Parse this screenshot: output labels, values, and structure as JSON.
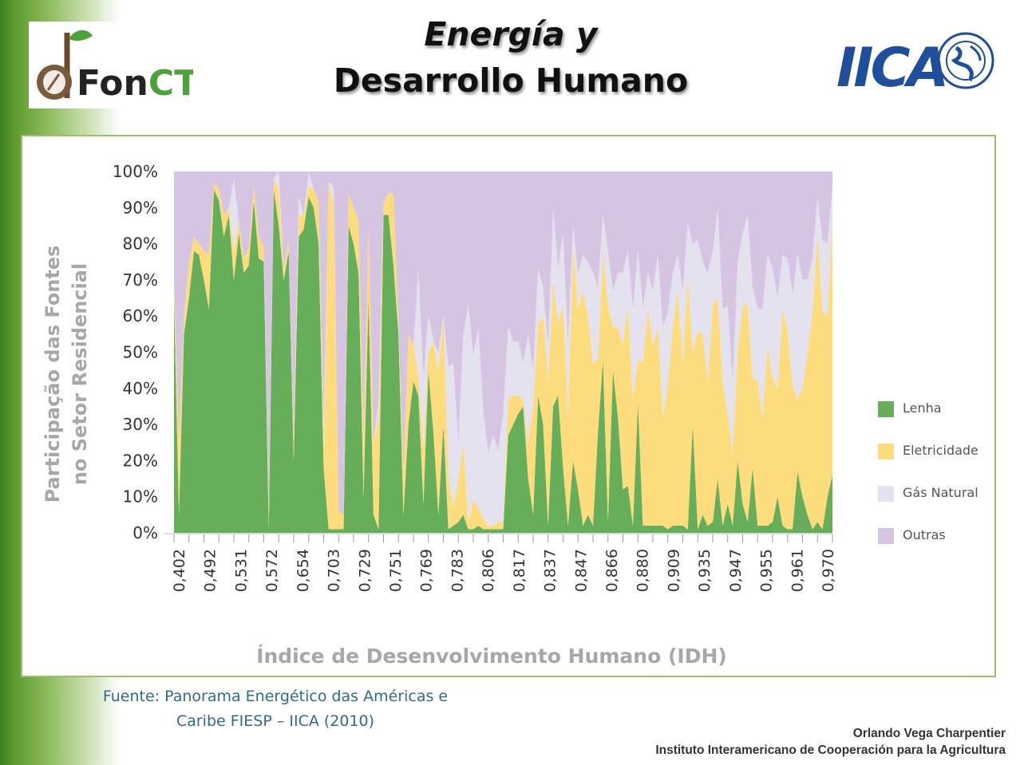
{
  "slide": {
    "title_line1": "Energía y",
    "title_line2": "Desarrollo Humano",
    "logo_left_text_a": "Fon",
    "logo_left_text_b": "CT",
    "logo_right_text": "IICA",
    "source_line1": "Fuente: Panorama Energético das Américas e",
    "source_line2": "Caribe FIESP – IICA (2010)",
    "author_name": "Orlando Vega Charpentier",
    "author_org": "Instituto Interamericano de Cooperación para la Agricultura"
  },
  "colors": {
    "lenha": "#66ae5a",
    "eletricidade": "#fddc7e",
    "gas_natural": "#e4e2ef",
    "outras": "#d6c5e2",
    "band_green": "#4a8a25",
    "title_shadow": "#9a9a9a",
    "frame": "#9bbf6a",
    "source_text": "#2f6b8e"
  },
  "chart_data": {
    "type": "area",
    "stacked": true,
    "ylabel_line1": "Participação das Fontes",
    "ylabel_line2": "no Setor Residencial",
    "xlabel": "Índice de Desenvolvimento Humano (IDH)",
    "ylim": [
      0,
      100
    ],
    "yticks": [
      "0%",
      "10%",
      "20%",
      "30%",
      "40%",
      "50%",
      "60%",
      "70%",
      "80%",
      "90%",
      "100%"
    ],
    "xtick_labels": [
      "0,402",
      "0,492",
      "0,531",
      "0,572",
      "0,654",
      "0,703",
      "0,729",
      "0,751",
      "0,769",
      "0,783",
      "0,806",
      "0,817",
      "0,837",
      "0,847",
      "0,866",
      "0,880",
      "0,909",
      "0,935",
      "0,947",
      "0,955",
      "0,961",
      "0,970"
    ],
    "legend_position": "right",
    "legend": [
      {
        "name": "Lenha",
        "color": "#66ae5a"
      },
      {
        "name": "Eletricidade",
        "color": "#fddc7e"
      },
      {
        "name": "Gás Natural",
        "color": "#e4e2ef"
      },
      {
        "name": "Outras",
        "color": "#d6c5e2"
      }
    ],
    "series": [
      {
        "name": "Lenha",
        "values": [
          65,
          5,
          55,
          65,
          78,
          77,
          70,
          62,
          95,
          92,
          82,
          88,
          70,
          83,
          72,
          74,
          92,
          76,
          75,
          1,
          95,
          85,
          70,
          78,
          20,
          82,
          84,
          93,
          90,
          80,
          18,
          1,
          1,
          1,
          1,
          85,
          80,
          72,
          10,
          65,
          5,
          1,
          88,
          88,
          74,
          55,
          5,
          30,
          42,
          38,
          8,
          45,
          28,
          5,
          30,
          1,
          2,
          3,
          5,
          1,
          1,
          2,
          1,
          1,
          1,
          1,
          1,
          27,
          30,
          33,
          35,
          15,
          5,
          38,
          30,
          2,
          35,
          38,
          18,
          2,
          20,
          12,
          2,
          5,
          2,
          28,
          48,
          3,
          45,
          32,
          12,
          13,
          2,
          36,
          2,
          2,
          2,
          2,
          2,
          1,
          2,
          2,
          2,
          1,
          30,
          1,
          5,
          2,
          3,
          15,
          2,
          8,
          2,
          20,
          8,
          3,
          18,
          2,
          2,
          2,
          3,
          10,
          2,
          1,
          1,
          17,
          10,
          5,
          1,
          3,
          1,
          10,
          16
        ]
      },
      {
        "name": "Eletricidade",
        "values": [
          5,
          20,
          5,
          10,
          4,
          3,
          8,
          15,
          2,
          3,
          6,
          2,
          8,
          3,
          4,
          5,
          4,
          6,
          4,
          4,
          3,
          10,
          3,
          3,
          5,
          6,
          4,
          3,
          5,
          12,
          5,
          96,
          90,
          5,
          4,
          9,
          10,
          14,
          15,
          20,
          20,
          30,
          3,
          6,
          20,
          3,
          12,
          25,
          10,
          5,
          15,
          5,
          25,
          40,
          30,
          15,
          5,
          12,
          20,
          2,
          8,
          5,
          3,
          1,
          1,
          2,
          2,
          10,
          8,
          5,
          2,
          10,
          30,
          20,
          30,
          40,
          35,
          20,
          45,
          30,
          60,
          50,
          65,
          55,
          45,
          20,
          30,
          60,
          12,
          25,
          40,
          50,
          35,
          12,
          45,
          60,
          50,
          55,
          30,
          40,
          55,
          65,
          45,
          70,
          20,
          55,
          50,
          40,
          60,
          50,
          40,
          25,
          20,
          30,
          55,
          60,
          25,
          40,
          30,
          50,
          40,
          30,
          60,
          55,
          40,
          20,
          30,
          45,
          60,
          80,
          60,
          50,
          70
        ]
      },
      {
        "name": "Gás Natural",
        "values": [
          0,
          0,
          0,
          0,
          0,
          0,
          0,
          0,
          0,
          0,
          0,
          0,
          20,
          0,
          0,
          0,
          0,
          0,
          0,
          0,
          0,
          5,
          0,
          0,
          0,
          5,
          0,
          5,
          0,
          0,
          5,
          0,
          5,
          0,
          0,
          0,
          0,
          0,
          0,
          0,
          0,
          5,
          0,
          0,
          0,
          0,
          0,
          0,
          0,
          30,
          20,
          10,
          0,
          5,
          0,
          30,
          40,
          10,
          30,
          60,
          40,
          50,
          30,
          20,
          25,
          20,
          30,
          20,
          15,
          15,
          10,
          30,
          10,
          15,
          8,
          10,
          20,
          15,
          20,
          20,
          5,
          10,
          10,
          15,
          25,
          20,
          10,
          15,
          10,
          15,
          20,
          15,
          25,
          30,
          15,
          10,
          15,
          20,
          25,
          20,
          15,
          10,
          20,
          15,
          30,
          25,
          20,
          30,
          15,
          25,
          20,
          30,
          20,
          25,
          20,
          25,
          25,
          20,
          30,
          25,
          30,
          25,
          15,
          20,
          25,
          40,
          30,
          20,
          15,
          10,
          20,
          20,
          10
        ]
      },
      {
        "name": "Outras",
        "values": [
          30,
          75,
          40,
          25,
          18,
          20,
          22,
          23,
          3,
          5,
          12,
          10,
          2,
          14,
          24,
          21,
          4,
          18,
          21,
          95,
          2,
          0,
          27,
          19,
          75,
          7,
          12,
          0,
          5,
          8,
          72,
          3,
          4,
          94,
          95,
          6,
          10,
          14,
          75,
          15,
          75,
          64,
          9,
          6,
          6,
          42,
          83,
          45,
          48,
          27,
          57,
          40,
          47,
          50,
          40,
          54,
          53,
          75,
          45,
          37,
          51,
          43,
          66,
          78,
          73,
          77,
          67,
          43,
          47,
          47,
          53,
          45,
          55,
          27,
          32,
          48,
          10,
          27,
          17,
          48,
          15,
          28,
          23,
          25,
          28,
          32,
          12,
          22,
          33,
          28,
          28,
          22,
          38,
          22,
          38,
          28,
          33,
          23,
          43,
          39,
          28,
          23,
          33,
          14,
          20,
          19,
          25,
          28,
          22,
          10,
          38,
          37,
          58,
          25,
          17,
          12,
          32,
          38,
          38,
          23,
          27,
          35,
          23,
          24,
          34,
          23,
          30,
          30,
          24,
          7,
          19,
          20,
          4
        ]
      }
    ]
  }
}
